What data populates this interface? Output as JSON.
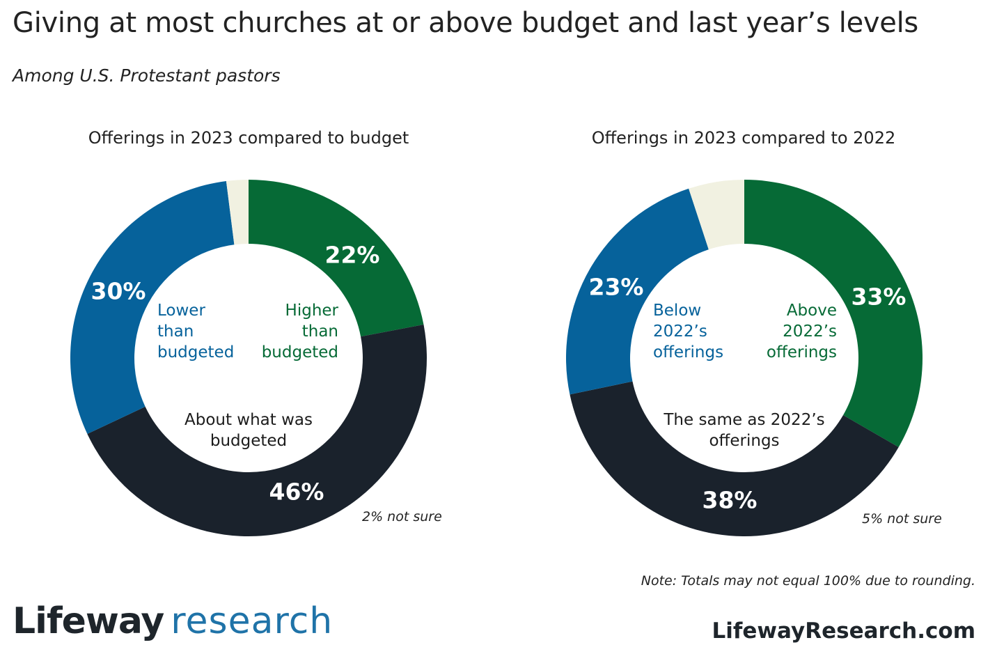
{
  "title": "Giving at most churches at or above budget and last year’s levels",
  "subtitle": "Among U.S. Protestant pastors",
  "colors": {
    "green": "#066a36",
    "blue": "#06629b",
    "navy": "#1a222c",
    "cream": "#f1f1e1"
  },
  "chart_data": [
    {
      "type": "pie",
      "title": "Offerings in 2023 compared to budget",
      "slices": [
        {
          "label": "Higher than budgeted",
          "value": 22,
          "value_label": "22%",
          "color": "#066a36"
        },
        {
          "label": "About what was budgeted",
          "value": 46,
          "value_label": "46%",
          "color": "#1a222c"
        },
        {
          "label": "Lower than budgeted",
          "value": 30,
          "value_label": "30%",
          "color": "#06629b"
        },
        {
          "label": "not sure",
          "value": 2,
          "value_label": "2% not sure",
          "color": "#f1f1e1"
        }
      ],
      "inner_labels": {
        "green": [
          "Higher",
          "than",
          "budgeted"
        ],
        "blue": [
          "Lower",
          "than",
          "budgeted"
        ],
        "navy": [
          "About what was",
          "budgeted"
        ]
      },
      "not_sure_text": "2% not sure"
    },
    {
      "type": "pie",
      "title": "Offerings in 2023 compared to 2022",
      "slices": [
        {
          "label": "Above 2022’s offerings",
          "value": 33,
          "value_label": "33%",
          "color": "#066a36"
        },
        {
          "label": "The same as 2022’s offerings",
          "value": 38,
          "value_label": "38%",
          "color": "#1a222c"
        },
        {
          "label": "Below 2022’s offerings",
          "value": 23,
          "value_label": "23%",
          "color": "#06629b"
        },
        {
          "label": "not sure",
          "value": 5,
          "value_label": "5% not sure",
          "color": "#f1f1e1"
        }
      ],
      "inner_labels": {
        "green": [
          "Above",
          "2022’s",
          "offerings"
        ],
        "blue": [
          "Below",
          "2022’s",
          "offerings"
        ],
        "navy": [
          "The same as 2022’s",
          "offerings"
        ]
      },
      "not_sure_text": "5% not sure"
    }
  ],
  "note": "Note: Totals may not equal 100% due to rounding.",
  "brand": {
    "part1": "Lifeway",
    "part2": "research"
  },
  "website": "LifewayResearch.com"
}
